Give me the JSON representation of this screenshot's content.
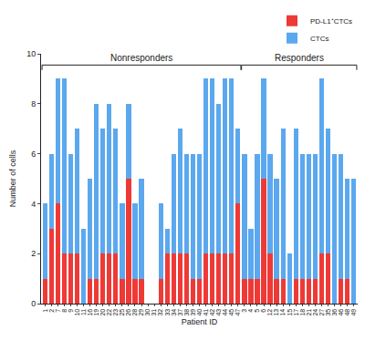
{
  "chart_data": {
    "type": "bar",
    "stacked": true,
    "categories": [
      "1",
      "2",
      "7",
      "8",
      "9",
      "10",
      "11",
      "16",
      "19",
      "20",
      "22",
      "23",
      "25",
      "26",
      "28",
      "29",
      "30",
      "31",
      "32",
      "33",
      "34",
      "37",
      "38",
      "39",
      "40",
      "41",
      "42",
      "43",
      "44",
      "45",
      "47",
      "3",
      "4",
      "5",
      "6",
      "12",
      "13",
      "14",
      "15",
      "17",
      "18",
      "21",
      "24",
      "27",
      "35",
      "36",
      "46",
      "48",
      "49"
    ],
    "series": [
      {
        "name": "PD-L1⁺CTCs",
        "color": "#ee3a36",
        "values": [
          1,
          3,
          4,
          2,
          2,
          2,
          0,
          1,
          1,
          2,
          2,
          2,
          1,
          5,
          1,
          1,
          0,
          0,
          1,
          2,
          2,
          2,
          2,
          1,
          1,
          2,
          2,
          2,
          2,
          2,
          4,
          1,
          1,
          1,
          5,
          2,
          1,
          1,
          0,
          1,
          1,
          1,
          1,
          2,
          2,
          0,
          1,
          1,
          0
        ]
      },
      {
        "name": "CTCs",
        "color": "#5ba8ef",
        "values": [
          3,
          3,
          5,
          7,
          4,
          5,
          3,
          4,
          7,
          5,
          6,
          5,
          3,
          3,
          3,
          4,
          0,
          0,
          3,
          1,
          4,
          5,
          4,
          5,
          5,
          7,
          7,
          6,
          7,
          7,
          3,
          5,
          2,
          5,
          4,
          4,
          4,
          6,
          2,
          6,
          5,
          5,
          5,
          7,
          5,
          6,
          5,
          4,
          5
        ]
      }
    ],
    "groups": [
      {
        "label": "Nonresponders",
        "first": "1",
        "last": "47"
      },
      {
        "label": "Responders",
        "first": "3",
        "last": "49"
      }
    ],
    "x_label": "Patient ID",
    "y_label": "Number of cells",
    "ylim": [
      0,
      10
    ],
    "yticks": [
      0,
      2,
      4,
      6,
      8,
      10
    ],
    "grid": false,
    "legend": "top right"
  }
}
